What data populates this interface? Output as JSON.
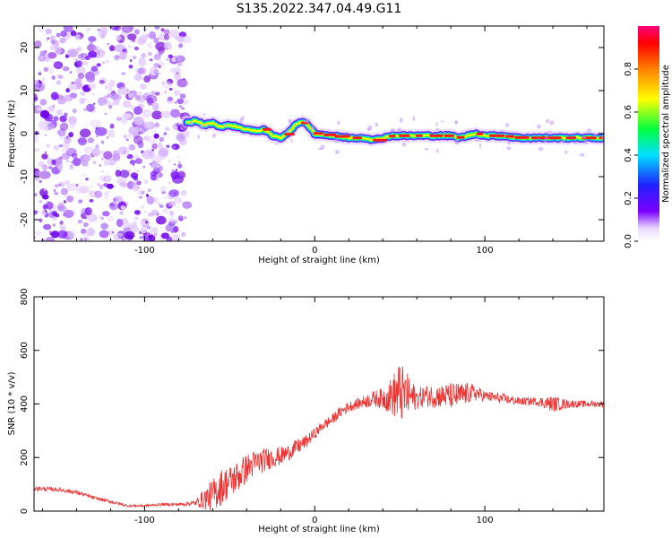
{
  "title": "S135.2022.347.04.49.G11",
  "colors": {
    "snr_line": "#ee3333",
    "axis": "#000000"
  },
  "chart_data": [
    {
      "type": "heatmap",
      "xlabel": "Height of straight line (km)",
      "ylabel": "Frequency (Hz)",
      "xlim": [
        -165,
        170
      ],
      "ylim": [
        -25,
        25
      ],
      "xticks": [
        {
          "v": -100,
          "label": "-100"
        },
        {
          "v": 0,
          "label": "0"
        },
        {
          "v": 100,
          "label": "100"
        }
      ],
      "yticks": [
        {
          "v": -20,
          "label": "-20"
        },
        {
          "v": -10,
          "label": "-10"
        },
        {
          "v": 0,
          "label": "0"
        },
        {
          "v": 10,
          "label": "10"
        },
        {
          "v": 20,
          "label": "20"
        }
      ],
      "noise_region_x": [
        -165,
        -75
      ],
      "ridge": {
        "x": [
          -75,
          -70,
          -65,
          -60,
          -55,
          -50,
          -45,
          -40,
          -35,
          -30,
          -25,
          -20,
          -15,
          -10,
          -5,
          0,
          10,
          20,
          30,
          35,
          40,
          45,
          50,
          60,
          65,
          70,
          80,
          85,
          90,
          95,
          100,
          110,
          120,
          130,
          140,
          150,
          160,
          170
        ],
        "y": [
          2.5,
          3,
          2,
          2.5,
          1.5,
          2,
          1.5,
          1,
          0.5,
          1,
          -0.5,
          -1,
          0.5,
          2.5,
          2.5,
          0,
          -0.5,
          -1,
          -1,
          -1.5,
          -1,
          -0.5,
          -0.5,
          -0.5,
          -0.5,
          -0.5,
          -0.5,
          -1,
          -0.5,
          0,
          -0.5,
          -0.5,
          -1,
          -1,
          -1,
          -1,
          -1,
          -1
        ]
      },
      "colorbar": {
        "label": "Normalized spectral amplitude",
        "range": [
          0,
          1
        ],
        "ticks": [
          {
            "v": 0.0,
            "label": "0.0"
          },
          {
            "v": 0.2,
            "label": "0.2"
          },
          {
            "v": 0.4,
            "label": "0.4"
          },
          {
            "v": 0.6,
            "label": "0.6"
          },
          {
            "v": 0.8,
            "label": "0.8"
          }
        ]
      }
    },
    {
      "type": "line",
      "xlabel": "Height of straight line (km)",
      "ylabel": "SNR (10 * v/v)",
      "xlim": [
        -165,
        170
      ],
      "ylim": [
        0,
        800
      ],
      "xticks": [
        {
          "v": -100,
          "label": "-100"
        },
        {
          "v": 0,
          "label": "0"
        },
        {
          "v": 100,
          "label": "100"
        }
      ],
      "yticks": [
        {
          "v": 0,
          "label": "0"
        },
        {
          "v": 200,
          "label": "200"
        },
        {
          "v": 400,
          "label": "400"
        },
        {
          "v": 600,
          "label": "600"
        },
        {
          "v": 800,
          "label": "800"
        }
      ],
      "series": [
        {
          "x": [
            -165,
            -150,
            -140,
            -130,
            -120,
            -110,
            -100,
            -90,
            -80,
            -70,
            -65,
            -60,
            -55,
            -50,
            -45,
            -40,
            -35,
            -30,
            -25,
            -20,
            -15,
            -10,
            -5,
            0,
            5,
            10,
            15,
            20,
            25,
            30,
            35,
            40,
            45,
            50,
            55,
            60,
            65,
            70,
            75,
            80,
            85,
            90,
            95,
            100,
            110,
            120,
            130,
            140,
            150,
            160,
            170
          ],
          "y": [
            85,
            80,
            70,
            50,
            35,
            20,
            20,
            25,
            25,
            30,
            45,
            60,
            90,
            110,
            130,
            160,
            180,
            190,
            200,
            205,
            220,
            240,
            260,
            290,
            320,
            340,
            370,
            390,
            400,
            410,
            420,
            420,
            430,
            440,
            430,
            420,
            430,
            430,
            430,
            430,
            430,
            440,
            440,
            430,
            420,
            410,
            410,
            400,
            400,
            400,
            400
          ],
          "noise": [
            8,
            8,
            8,
            6,
            6,
            5,
            5,
            5,
            6,
            10,
            40,
            60,
            70,
            60,
            60,
            55,
            50,
            45,
            40,
            35,
            30,
            30,
            25,
            20,
            20,
            20,
            20,
            20,
            20,
            25,
            30,
            40,
            70,
            120,
            80,
            40,
            40,
            45,
            45,
            50,
            50,
            40,
            30,
            20,
            20,
            15,
            15,
            30,
            15,
            12,
            12
          ]
        }
      ]
    }
  ]
}
